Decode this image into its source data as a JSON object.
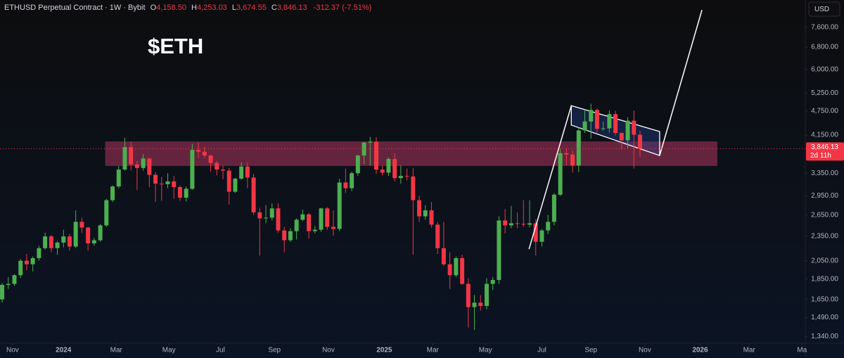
{
  "chart_data": {
    "type": "candlestick",
    "legend": {
      "symbol": "ETHUSD Perpetual Contract · 1W · Bybit",
      "fields": [
        {
          "name": "O",
          "label": "4,158.50"
        },
        {
          "name": "H",
          "label": "4,253.03"
        },
        {
          "name": "L",
          "label": "3,674.55"
        },
        {
          "name": "C",
          "label": "3,846.13"
        }
      ],
      "change": "-312.37 (-7.51%)"
    },
    "annotation": "$ETH",
    "currency": "USD",
    "up_color": "#4caf50",
    "down_color": "#f23645",
    "log_scale": true,
    "x": [
      0,
      1,
      2,
      3,
      4,
      5,
      6,
      7,
      8,
      9,
      10,
      11,
      12,
      13,
      14,
      15,
      16,
      17,
      18,
      19,
      20,
      21,
      22,
      23,
      24,
      25,
      26,
      27,
      28,
      29,
      30,
      31,
      32,
      33,
      34,
      35,
      36,
      37,
      38,
      39,
      40,
      41,
      42,
      43,
      44,
      45,
      46,
      47,
      48,
      49,
      50,
      51,
      52,
      53,
      54,
      55,
      56,
      57,
      58,
      59,
      60,
      61,
      62,
      63,
      64,
      65,
      66,
      67,
      68,
      69,
      70,
      71,
      72,
      73,
      74,
      75,
      76,
      77,
      78,
      79,
      80,
      81,
      82,
      83,
      84,
      85,
      86,
      87,
      88,
      89,
      90,
      91,
      92,
      93,
      94,
      95,
      96,
      97,
      98,
      99,
      100,
      101,
      102,
      103,
      104
    ],
    "open": [
      1650,
      1790,
      1800,
      1890,
      2050,
      2010,
      2080,
      2200,
      2350,
      2200,
      2270,
      2350,
      2220,
      2550,
      2470,
      2260,
      2300,
      2500,
      2880,
      3110,
      3420,
      3880,
      3520,
      3450,
      3640,
      3320,
      3160,
      3150,
      3200,
      3100,
      2920,
      3070,
      3820,
      3780,
      3700,
      3550,
      3420,
      3400,
      3020,
      3250,
      3480,
      3270,
      2690,
      2600,
      2610,
      2750,
      2430,
      2300,
      2420,
      2580,
      2660,
      2420,
      2440,
      2750,
      2480,
      2450,
      3180,
      3080,
      3350,
      3700,
      3980,
      4000,
      3420,
      3360,
      3630,
      3260,
      3300,
      3290,
      2880,
      2630,
      2720,
      2510,
      2200,
      2010,
      1890,
      2080,
      1800,
      1580,
      1620,
      1590,
      1800,
      1840,
      2570,
      2500,
      2530,
      2520,
      2510,
      2530,
      2280,
      2430,
      2550,
      2970,
      3750,
      3720,
      3500,
      4260,
      4480,
      4780,
      4300,
      4310,
      4670,
      4200,
      4030,
      4500,
      4158.5
    ],
    "high": [
      1810,
      1870,
      1900,
      2070,
      2130,
      2100,
      2230,
      2400,
      2370,
      2290,
      2440,
      2380,
      2720,
      2610,
      2480,
      2330,
      2520,
      2900,
      3130,
      3490,
      4090,
      4000,
      3590,
      3730,
      3650,
      3370,
      3280,
      3350,
      3300,
      3130,
      3110,
      3950,
      3980,
      3890,
      3720,
      3590,
      3500,
      3450,
      3260,
      3560,
      3560,
      3340,
      2760,
      2800,
      2830,
      2830,
      2480,
      2460,
      2600,
      2730,
      2680,
      2490,
      2760,
      2770,
      2720,
      3250,
      3440,
      3380,
      3720,
      4000,
      4110,
      4100,
      3500,
      3660,
      3750,
      3500,
      3440,
      3450,
      2950,
      2800,
      2850,
      2550,
      2550,
      2150,
      2100,
      2120,
      1860,
      1690,
      1690,
      1860,
      1870,
      2630,
      2740,
      2790,
      2690,
      2880,
      2880,
      2590,
      2450,
      2650,
      3000,
      3860,
      3860,
      3800,
      4330,
      4790,
      4950,
      4820,
      4480,
      4770,
      4760,
      4210,
      4590,
      4760,
      4253.03
    ],
    "low": [
      1620,
      1750,
      1780,
      1860,
      1940,
      1930,
      2050,
      2180,
      2150,
      2120,
      2210,
      2170,
      2200,
      2400,
      2170,
      2230,
      2280,
      2480,
      2850,
      3080,
      3400,
      3400,
      3050,
      3400,
      3100,
      2850,
      2870,
      3080,
      2900,
      2870,
      2860,
      3050,
      3650,
      3650,
      3380,
      3310,
      3240,
      2810,
      3000,
      3230,
      3080,
      2650,
      2110,
      2530,
      2570,
      2400,
      2150,
      2280,
      2310,
      2560,
      2320,
      2390,
      2410,
      2440,
      2360,
      2420,
      3000,
      3030,
      3300,
      3520,
      3500,
      3340,
      3310,
      3300,
      3200,
      3160,
      3220,
      2120,
      2550,
      2580,
      2470,
      2130,
      1990,
      1750,
      1870,
      1790,
      1410,
      1390,
      1550,
      1560,
      1740,
      1800,
      2390,
      2460,
      2460,
      2480,
      2470,
      2110,
      2220,
      2380,
      2500,
      2950,
      3500,
      3360,
      3370,
      4200,
      4070,
      4210,
      4260,
      4210,
      4140,
      3830,
      3850,
      3440,
      3674.55
    ],
    "close": [
      1790,
      1800,
      1890,
      2050,
      2010,
      2080,
      2200,
      2350,
      2200,
      2270,
      2350,
      2220,
      2550,
      2470,
      2260,
      2300,
      2500,
      2880,
      3110,
      3420,
      3880,
      3520,
      3450,
      3640,
      3320,
      3160,
      3150,
      3200,
      3100,
      2920,
      3070,
      3820,
      3780,
      3700,
      3550,
      3420,
      3400,
      3020,
      3250,
      3480,
      3270,
      2690,
      2600,
      2610,
      2750,
      2430,
      2300,
      2420,
      2580,
      2660,
      2420,
      2440,
      2750,
      2480,
      2450,
      3180,
      3080,
      3350,
      3700,
      3980,
      4000,
      3420,
      3360,
      3630,
      3260,
      3300,
      3290,
      2880,
      2630,
      2720,
      2510,
      2200,
      2010,
      1890,
      2080,
      1800,
      1580,
      1620,
      1590,
      1800,
      1840,
      2570,
      2500,
      2530,
      2520,
      2510,
      2530,
      2280,
      2430,
      2550,
      2970,
      3750,
      3720,
      3500,
      4260,
      4480,
      4780,
      4300,
      4310,
      4670,
      4200,
      4030,
      4500,
      4158.5,
      3846.13
    ],
    "xlim": [
      -0.35,
      130.95
    ],
    "xticks": [
      {
        "value": 1.7,
        "label": "Nov"
      },
      {
        "value": 10,
        "label": "2024"
      },
      {
        "value": 18.6,
        "label": "Mar"
      },
      {
        "value": 27.2,
        "label": "May"
      },
      {
        "value": 35.6,
        "label": "Jul"
      },
      {
        "value": 44.4,
        "label": "Sep"
      },
      {
        "value": 53.2,
        "label": "Nov"
      },
      {
        "value": 62.3,
        "label": "2025"
      },
      {
        "value": 70.2,
        "label": "Mar"
      },
      {
        "value": 78.8,
        "label": "May"
      },
      {
        "value": 88,
        "label": "Jul"
      },
      {
        "value": 96,
        "label": "Sep"
      },
      {
        "value": 104.8,
        "label": "Nov"
      },
      {
        "value": 113.8,
        "label": "2026"
      },
      {
        "value": 121.8,
        "label": "Mar"
      },
      {
        "value": 130.4,
        "label": "Ma"
      }
    ],
    "ylim": [
      1290,
      8860
    ],
    "yticks": [
      {
        "value": 7600,
        "label": "7,600.00"
      },
      {
        "value": 6800,
        "label": "6,800.00"
      },
      {
        "value": 6000,
        "label": "6,000.00"
      },
      {
        "value": 5250,
        "label": "5,250.00"
      },
      {
        "value": 4750,
        "label": "4,750.00"
      },
      {
        "value": 4150,
        "label": "4,150.00"
      },
      {
        "value": 3350,
        "label": "3,350.00"
      },
      {
        "value": 2950,
        "label": "2,950.00"
      },
      {
        "value": 2650,
        "label": "2,650.00"
      },
      {
        "value": 2350,
        "label": "2,350.00"
      },
      {
        "value": 2050,
        "label": "2,050.00"
      },
      {
        "value": 1850,
        "label": "1,850.00"
      },
      {
        "value": 1650,
        "label": "1,650.00"
      },
      {
        "value": 1490,
        "label": "1,490.00"
      },
      {
        "value": 1340,
        "label": "1,340.00"
      }
    ],
    "zone": {
      "x0": 16.8,
      "x1": 116.6,
      "low": 3490,
      "high": 4005,
      "color": "rgba(190,55,100,0.5)"
    },
    "channel": {
      "x": [
        92.8,
        107.2,
        107.2,
        92.8
      ],
      "y": [
        4895,
        4235,
        3700,
        4390
      ],
      "color": "rgba(40,70,150,0.35)"
    },
    "trendlines": [
      {
        "x": [
          85.9,
          92.8
        ],
        "y": [
          2188,
          4895
        ]
      },
      {
        "x": [
          107.2,
          114.1
        ],
        "y": [
          3700,
          8380
        ]
      }
    ],
    "last_price": {
      "value": 3846.13,
      "label": "3,846.13",
      "countdown": "2d 11h"
    }
  }
}
